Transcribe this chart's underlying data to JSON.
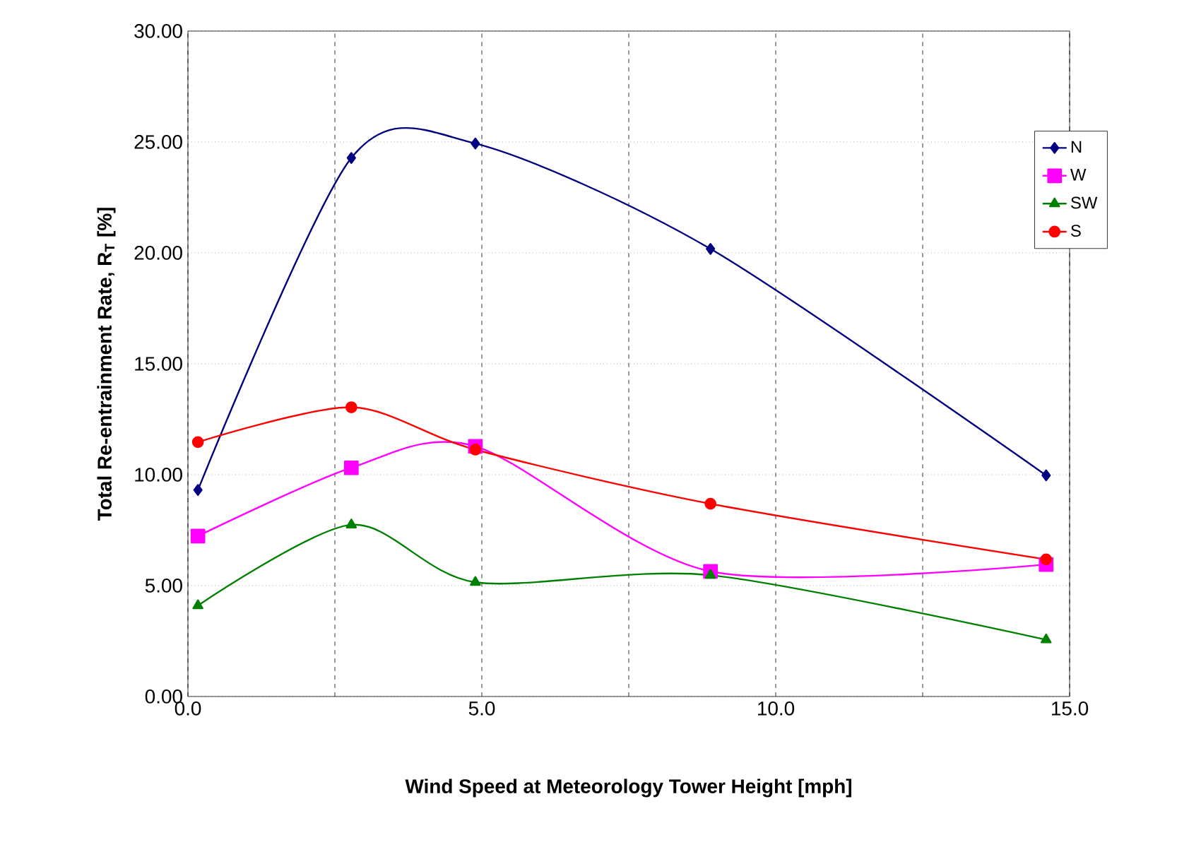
{
  "chart_data": {
    "type": "line",
    "xlabel": "Wind Speed at Meteorology Tower Height [mph]",
    "ylabel": "Total Re-entrainment Rate, R$_{T}$ [%]",
    "series": [
      {
        "name": "N",
        "color": "#000080",
        "marker": "diamond",
        "x": [
          0.17,
          2.78,
          4.89,
          8.89,
          14.6
        ],
        "values": [
          9.31,
          24.28,
          24.93,
          20.18,
          9.97
        ]
      },
      {
        "name": "W",
        "color": "#ff00ff",
        "marker": "square",
        "x": [
          0.17,
          2.78,
          4.89,
          8.89,
          14.6
        ],
        "values": [
          7.23,
          10.31,
          11.28,
          5.64,
          5.95
        ]
      },
      {
        "name": "SW",
        "color": "#008000",
        "marker": "triangle",
        "x": [
          0.17,
          2.78,
          4.89,
          8.89,
          14.6
        ],
        "values": [
          4.1,
          7.74,
          5.15,
          5.47,
          2.56
        ]
      },
      {
        "name": "S",
        "color": "#ff0000",
        "marker": "circle",
        "x": [
          0.17,
          2.78,
          4.89,
          8.89,
          14.6
        ],
        "values": [
          11.47,
          13.04,
          11.13,
          8.69,
          6.18
        ]
      }
    ],
    "xlim": [
      0,
      15
    ],
    "ylim": [
      0,
      30
    ],
    "xticks": [
      {
        "value": 0,
        "label": "0.0"
      },
      {
        "value": 2.5,
        "label": null
      },
      {
        "value": 5,
        "label": "5.0"
      },
      {
        "value": 7.5,
        "label": null
      },
      {
        "value": 10,
        "label": "10.0"
      },
      {
        "value": 12.5,
        "label": null
      },
      {
        "value": 15,
        "label": "15.0"
      }
    ],
    "yticks": [
      {
        "value": 0,
        "label": "0.00"
      },
      {
        "value": 5,
        "label": "5.00"
      },
      {
        "value": 10,
        "label": "10.00"
      },
      {
        "value": 15,
        "label": "15.00"
      },
      {
        "value": 20,
        "label": "20.00"
      },
      {
        "value": 25,
        "label": "25.00"
      },
      {
        "value": 30,
        "label": "30.00"
      }
    ],
    "grid": true,
    "legend": "right"
  }
}
